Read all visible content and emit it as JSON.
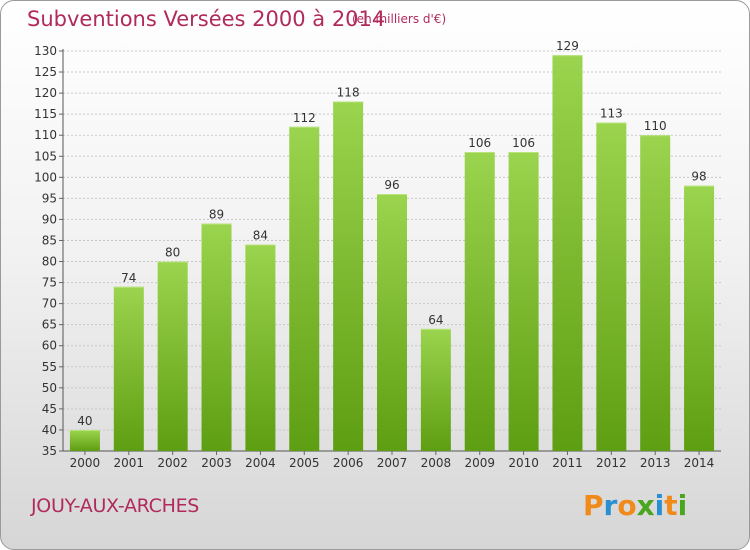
{
  "title": "Subventions Versées 2000 à 2014",
  "subtitle": "(en milliers d'€)",
  "town": "JOUY-AUX-ARCHES",
  "logo": {
    "letters": [
      "P",
      "r",
      "o",
      "x",
      "i",
      "t",
      "i"
    ],
    "colors": [
      "#f08a1a",
      "#2a8fd0",
      "#f08a1a",
      "#4aa61e",
      "#2a8fd0",
      "#f08a1a",
      "#4aa61e"
    ]
  },
  "colors": {
    "bar_top": "#9bd44e",
    "bar_bottom": "#5e9e12",
    "title": "#b02a5b"
  },
  "chart_data": {
    "type": "bar",
    "categories": [
      "2000",
      "2001",
      "2002",
      "2003",
      "2004",
      "2005",
      "2006",
      "2007",
      "2008",
      "2009",
      "2010",
      "2011",
      "2012",
      "2013",
      "2014"
    ],
    "values": [
      40,
      74,
      80,
      89,
      84,
      112,
      118,
      96,
      64,
      106,
      106,
      129,
      113,
      110,
      98
    ],
    "ylim": [
      35,
      130
    ],
    "yticks": [
      35,
      40,
      45,
      50,
      55,
      60,
      65,
      70,
      75,
      80,
      85,
      90,
      95,
      100,
      105,
      110,
      115,
      120,
      125,
      130
    ],
    "grid": true,
    "title": "Subventions Versées 2000 à 2014",
    "xlabel": "",
    "ylabel": ""
  }
}
